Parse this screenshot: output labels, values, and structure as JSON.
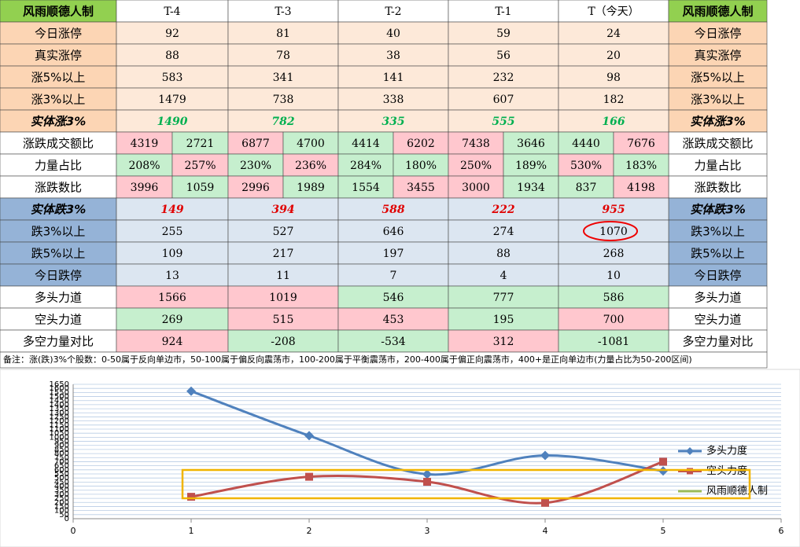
{
  "table": {
    "header": [
      "风雨顺德人制",
      "T-4",
      "T-3",
      "T-2",
      "T-1",
      "T（今天）"
    ],
    "rows": [
      {
        "label": "今日涨停",
        "style": "up",
        "values": [
          92,
          81,
          40,
          59,
          24
        ]
      },
      {
        "label": "真实涨停",
        "style": "up",
        "values": [
          88,
          78,
          38,
          56,
          20
        ]
      },
      {
        "label": "涨5%以上",
        "style": "up",
        "values": [
          583,
          341,
          141,
          232,
          98
        ]
      },
      {
        "label": "涨3%以上",
        "style": "up",
        "values": [
          1479,
          738,
          338,
          607,
          182
        ]
      },
      {
        "label": "实体涨3%",
        "style": "up-em",
        "values": [
          1490,
          782,
          335,
          555,
          166
        ]
      },
      {
        "label": "涨跌成交额比",
        "style": "mid",
        "values": [
          [
            4319,
            2721
          ],
          [
            6877,
            4700
          ],
          [
            4414,
            6202
          ],
          [
            7438,
            3646
          ],
          [
            4440,
            7676
          ]
        ],
        "colors": [
          [
            "p",
            "g"
          ],
          [
            "p",
            "g"
          ],
          [
            "g",
            "p"
          ],
          [
            "p",
            "g"
          ],
          [
            "g",
            "p"
          ]
        ]
      },
      {
        "label": "力量占比",
        "style": "mid",
        "values": [
          [
            "208%",
            "257%"
          ],
          [
            "230%",
            "236%"
          ],
          [
            "284%",
            "180%"
          ],
          [
            "250%",
            "189%"
          ],
          [
            "530%",
            "183%"
          ]
        ],
        "colors": [
          [
            "g",
            "p"
          ],
          [
            "g",
            "p"
          ],
          [
            "g",
            "g"
          ],
          [
            "p",
            "g"
          ],
          [
            "p",
            "g"
          ]
        ]
      },
      {
        "label": "涨跌数比",
        "style": "mid",
        "values": [
          [
            3996,
            1059
          ],
          [
            2996,
            1989
          ],
          [
            1554,
            3455
          ],
          [
            3000,
            1934
          ],
          [
            837,
            4198
          ]
        ],
        "colors": [
          [
            "p",
            "g"
          ],
          [
            "p",
            "g"
          ],
          [
            "g",
            "p"
          ],
          [
            "p",
            "g"
          ],
          [
            "g",
            "p"
          ]
        ]
      },
      {
        "label": "实体跌3%",
        "style": "down-em",
        "values": [
          149,
          394,
          588,
          222,
          955
        ]
      },
      {
        "label": "跌3%以上",
        "style": "down",
        "values": [
          255,
          527,
          646,
          274,
          1070
        ]
      },
      {
        "label": "跌5%以上",
        "style": "down",
        "values": [
          109,
          217,
          197,
          88,
          268
        ]
      },
      {
        "label": "今日跌停",
        "style": "down",
        "values": [
          13,
          11,
          7,
          4,
          10
        ]
      },
      {
        "label": "多头力道",
        "style": "mid",
        "values": [
          1566,
          1019,
          546,
          777,
          586
        ],
        "colors": [
          "p",
          "p",
          "g",
          "g",
          "g"
        ]
      },
      {
        "label": "空头力道",
        "style": "mid",
        "values": [
          269,
          515,
          453,
          195,
          700
        ],
        "colors": [
          "g",
          "p",
          "p",
          "g",
          "p"
        ]
      },
      {
        "label": "多空力量对比",
        "style": "mid",
        "values": [
          924,
          -208,
          -534,
          312,
          -1081
        ],
        "colors": [
          "p",
          "g",
          "g",
          "p",
          "g"
        ]
      }
    ],
    "note": "备注：涨(跌)3%个股数：0-50属于反向单边市，50-100属于偏反向震荡市，100-200属于平衡震荡市，200-400属于偏正向震荡市，400+是正向单边市(力量占比为50-200区间)"
  },
  "chart_data": {
    "type": "line",
    "x": [
      1,
      2,
      3,
      4,
      5
    ],
    "series": [
      {
        "name": "多头力度",
        "color": "#4f81bd",
        "marker": "diamond",
        "values": [
          1566,
          1019,
          546,
          777,
          586
        ]
      },
      {
        "name": "空头力度",
        "color": "#c0504d",
        "marker": "square",
        "values": [
          269,
          515,
          453,
          195,
          700
        ]
      },
      {
        "name": "风雨顺德人制",
        "color": "#9bbb59",
        "values": [
          null,
          null,
          null,
          null,
          null
        ]
      }
    ],
    "smooth": true,
    "grid": true,
    "legend": "right",
    "xlim": [
      0,
      6
    ],
    "xticks": [
      0,
      1,
      2,
      3,
      4,
      5,
      6
    ],
    "ylim": [
      0,
      1650
    ],
    "yticks": [
      0,
      50,
      100,
      150,
      200,
      250,
      300,
      350,
      400,
      450,
      500,
      550,
      600,
      650,
      700,
      750,
      800,
      850,
      900,
      950,
      1000,
      1050,
      1100,
      1150,
      1200,
      1250,
      1300,
      1350,
      1400,
      1450,
      1500,
      1550,
      1600,
      1650
    ]
  }
}
